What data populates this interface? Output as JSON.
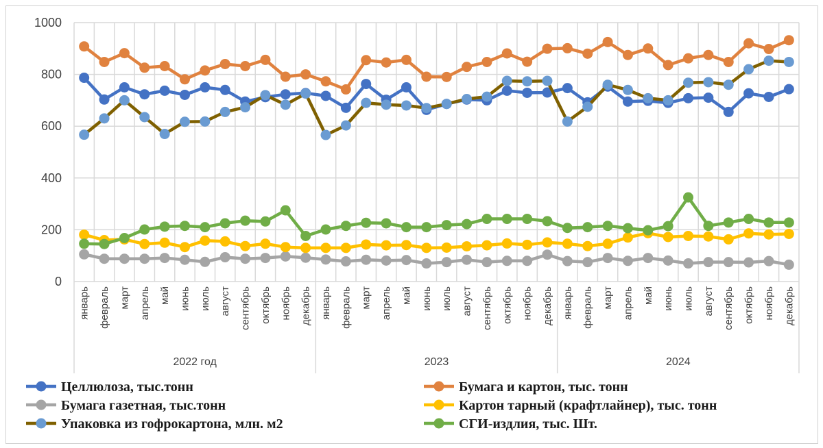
{
  "chart_data": {
    "type": "line",
    "title": "",
    "xlabel": "",
    "ylabel": "",
    "ylim": [
      0,
      1000
    ],
    "yticks": [
      0,
      200,
      400,
      600,
      800,
      1000
    ],
    "grid": true,
    "legend_position": "bottom",
    "groups": [
      {
        "label": "2022 год",
        "months": [
          "январь",
          "февраль",
          "март",
          "апрель",
          "май",
          "июнь",
          "июль",
          "август",
          "сентябрь",
          "октябрь",
          "ноябрь",
          "декабрь"
        ]
      },
      {
        "label": "2023",
        "months": [
          "январь",
          "февраль",
          "март",
          "апрель",
          "май",
          "июнь",
          "июль",
          "август",
          "сентябрь",
          "октябрь",
          "ноябрь",
          "декабрь"
        ]
      },
      {
        "label": "2024",
        "months": [
          "январь",
          "февраль",
          "март",
          "апрель",
          "май",
          "июнь",
          "июль",
          "август",
          "сентябрь",
          "октябрь",
          "ноябрь",
          "декабрь"
        ]
      }
    ],
    "series": [
      {
        "name": "Целлюлоза, тыс.тонн",
        "line_color": "#4472c4",
        "marker_color": "#4472c4",
        "values": [
          787,
          703,
          750,
          723,
          737,
          721,
          750,
          740,
          695,
          712,
          723,
          728,
          717,
          671,
          763,
          702,
          750,
          663,
          686,
          703,
          700,
          737,
          729,
          730,
          747,
          692,
          753,
          695,
          698,
          690,
          708,
          710,
          655,
          727,
          713,
          743
        ]
      },
      {
        "name": "Бумага и картон, тыс. тонн",
        "line_color": "#e0823f",
        "marker_color": "#e0823f",
        "values": [
          908,
          848,
          882,
          826,
          832,
          781,
          815,
          840,
          832,
          856,
          791,
          800,
          773,
          742,
          855,
          846,
          856,
          791,
          790,
          829,
          848,
          881,
          849,
          899,
          901,
          880,
          925,
          875,
          900,
          836,
          862,
          875,
          848,
          920,
          898,
          932
        ]
      },
      {
        "name": "Бумага газетная, тыс.тонн",
        "line_color": "#a5a5a5",
        "marker_color": "#a5a5a5",
        "values": [
          105,
          88,
          88,
          88,
          91,
          84,
          76,
          94,
          88,
          91,
          97,
          92,
          85,
          78,
          84,
          81,
          83,
          70,
          75,
          84,
          75,
          80,
          80,
          104,
          79,
          75,
          91,
          80,
          91,
          81,
          70,
          75,
          75,
          74,
          79,
          65
        ]
      },
      {
        "name": "Картон тарный (крафтлайнер), тыс. тонн",
        "line_color": "#ffc000",
        "marker_color": "#ffc000",
        "values": [
          181,
          160,
          163,
          145,
          150,
          133,
          158,
          155,
          137,
          146,
          133,
          130,
          130,
          130,
          143,
          140,
          141,
          130,
          131,
          136,
          140,
          147,
          142,
          151,
          146,
          137,
          146,
          170,
          187,
          172,
          176,
          174,
          163,
          186,
          182,
          184
        ]
      },
      {
        "name": "Упаковка из гофрокартона, млн. м2",
        "line_color": "#7f6000",
        "marker_color": "#6a9bd2",
        "values": [
          567,
          630,
          700,
          635,
          570,
          617,
          618,
          655,
          673,
          720,
          683,
          726,
          566,
          603,
          690,
          683,
          680,
          670,
          686,
          705,
          714,
          775,
          773,
          775,
          618,
          675,
          760,
          740,
          708,
          700,
          768,
          770,
          760,
          820,
          853,
          848
        ]
      },
      {
        "name": "СГИ-издлия, тыс. Шт.",
        "line_color": "#70ad47",
        "marker_color": "#70ad47",
        "values": [
          146,
          145,
          168,
          201,
          212,
          215,
          210,
          225,
          235,
          232,
          275,
          176,
          201,
          215,
          227,
          225,
          210,
          210,
          218,
          222,
          242,
          242,
          242,
          233,
          207,
          210,
          215,
          206,
          198,
          214,
          325,
          215,
          228,
          242,
          228,
          228
        ]
      }
    ]
  }
}
